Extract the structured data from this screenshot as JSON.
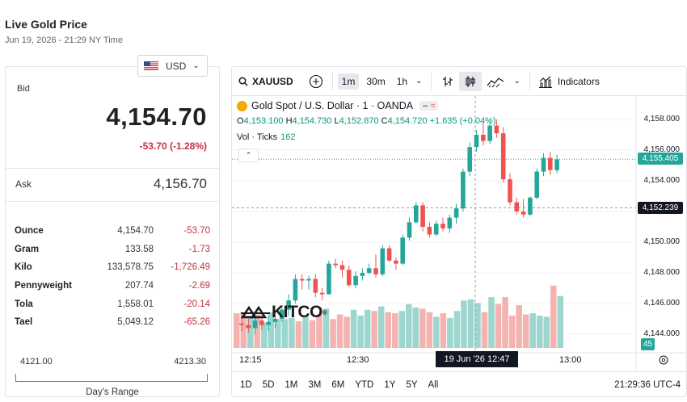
{
  "page": {
    "title": "Live Gold Price",
    "datetime": "Jun 19, 2026 - 21:29 NY Time"
  },
  "currency": {
    "selected": "USD"
  },
  "quote": {
    "bid_label": "Bid",
    "bid": "4,154.70",
    "bid_change": "-53.70 (-1.28%)",
    "ask_label": "Ask",
    "ask": "4,156.70"
  },
  "units": [
    {
      "name": "Ounce",
      "price": "4,154.70",
      "change": "-53.70"
    },
    {
      "name": "Gram",
      "price": "133.58",
      "change": "-1.73"
    },
    {
      "name": "Kilo",
      "price": "133,578.75",
      "change": "-1,726.49"
    },
    {
      "name": "Pennyweight",
      "price": "207.74",
      "change": "-2.69"
    },
    {
      "name": "Tola",
      "price": "1,558.01",
      "change": "-20.14"
    },
    {
      "name": "Tael",
      "price": "5,049.12",
      "change": "-65.26"
    }
  ],
  "day_range": {
    "low": "4121.00",
    "high": "4213.30",
    "label": "Day's Range"
  },
  "toolbar": {
    "symbol": "XAUUSD",
    "intervals": [
      "1m",
      "30m",
      "1h"
    ],
    "active_interval": "1m",
    "indicators_label": "Indicators"
  },
  "legend": {
    "title": "Gold Spot / U.S. Dollar · 1 · OANDA",
    "open_label": "O",
    "open": "4,153.100",
    "high_label": "H",
    "high": "4,154.730",
    "low_label": "L",
    "low": "4,152.870",
    "close_label": "C",
    "close": "4,154.720",
    "change": "+1.635 (+0.04%)",
    "vol_label": "Vol · Ticks",
    "vol_value": "162"
  },
  "watermark": "KITCO",
  "time_axis": {
    "labels": [
      "12:15",
      "12:30",
      "13:00"
    ],
    "cursor": "19 Jun '26   12:47"
  },
  "price_axis": {
    "ticks": [
      "4,158.000",
      "4,156.000",
      "4,154.000",
      "4,152.000",
      "4,150.000",
      "4,148.000",
      "4,146.000",
      "4,144.000"
    ],
    "last_price": "4,155.405",
    "cursor_price": "4,152.239",
    "volume_last": "45"
  },
  "ranges": [
    "1D",
    "5D",
    "1M",
    "3M",
    "6M",
    "YTD",
    "1Y",
    "5Y",
    "All"
  ],
  "clock": "21:29:36 UTC-4",
  "colors": {
    "up": "#26a69a",
    "down": "#ef5350",
    "up_vol": "#9dd6cf",
    "down_vol": "#f4b3b0",
    "accent": "#089981",
    "negative": "#c5323f"
  },
  "chart_data": {
    "type": "candlestick",
    "interval": "1m",
    "symbol": "XAUUSD",
    "ylim": [
      4143.5,
      4159.5
    ],
    "candles": [
      {
        "o": 4144.7,
        "h": 4145.2,
        "l": 4144.2,
        "c": 4144.6
      },
      {
        "o": 4144.6,
        "h": 4145.0,
        "l": 4144.1,
        "c": 4144.4
      },
      {
        "o": 4144.4,
        "h": 4145.3,
        "l": 4144.0,
        "c": 4144.9
      },
      {
        "o": 4144.9,
        "h": 4145.4,
        "l": 4144.3,
        "c": 4144.6
      },
      {
        "o": 4144.6,
        "h": 4145.2,
        "l": 4144.2,
        "c": 4144.8
      },
      {
        "o": 4144.8,
        "h": 4145.5,
        "l": 4144.4,
        "c": 4145.0
      },
      {
        "o": 4145.0,
        "h": 4145.8,
        "l": 4144.8,
        "c": 4145.6
      },
      {
        "o": 4145.6,
        "h": 4146.6,
        "l": 4145.2,
        "c": 4146.2
      },
      {
        "o": 4146.2,
        "h": 4147.9,
        "l": 4146.0,
        "c": 4147.6
      },
      {
        "o": 4147.6,
        "h": 4147.9,
        "l": 4146.9,
        "c": 4147.5
      },
      {
        "o": 4147.5,
        "h": 4147.8,
        "l": 4146.9,
        "c": 4147.6
      },
      {
        "o": 4147.6,
        "h": 4147.9,
        "l": 4146.4,
        "c": 4146.7
      },
      {
        "o": 4146.7,
        "h": 4147.0,
        "l": 4146.2,
        "c": 4146.6
      },
      {
        "o": 4146.6,
        "h": 4148.8,
        "l": 4146.6,
        "c": 4148.6
      },
      {
        "o": 4148.6,
        "h": 4148.9,
        "l": 4148.3,
        "c": 4148.5
      },
      {
        "o": 4148.5,
        "h": 4148.8,
        "l": 4147.7,
        "c": 4148.2
      },
      {
        "o": 4148.2,
        "h": 4148.5,
        "l": 4147.1,
        "c": 4147.2
      },
      {
        "o": 4147.2,
        "h": 4148.1,
        "l": 4147.0,
        "c": 4147.8
      },
      {
        "o": 4147.8,
        "h": 4148.3,
        "l": 4147.5,
        "c": 4148.0
      },
      {
        "o": 4148.0,
        "h": 4148.6,
        "l": 4147.9,
        "c": 4148.3
      },
      {
        "o": 4148.3,
        "h": 4149.2,
        "l": 4147.7,
        "c": 4147.9
      },
      {
        "o": 4147.9,
        "h": 4149.8,
        "l": 4147.8,
        "c": 4149.6
      },
      {
        "o": 4149.6,
        "h": 4149.8,
        "l": 4148.7,
        "c": 4148.8
      },
      {
        "o": 4148.8,
        "h": 4149.0,
        "l": 4148.2,
        "c": 4148.6
      },
      {
        "o": 4148.6,
        "h": 4150.5,
        "l": 4148.5,
        "c": 4150.3
      },
      {
        "o": 4150.3,
        "h": 4151.6,
        "l": 4150.1,
        "c": 4151.3
      },
      {
        "o": 4151.3,
        "h": 4152.6,
        "l": 4151.2,
        "c": 4152.4
      },
      {
        "o": 4152.4,
        "h": 4152.6,
        "l": 4150.7,
        "c": 4151.0
      },
      {
        "o": 4151.0,
        "h": 4151.3,
        "l": 4150.3,
        "c": 4150.5
      },
      {
        "o": 4150.5,
        "h": 4151.4,
        "l": 4150.4,
        "c": 4151.2
      },
      {
        "o": 4151.2,
        "h": 4151.6,
        "l": 4150.7,
        "c": 4150.9
      },
      {
        "o": 4150.9,
        "h": 4151.8,
        "l": 4150.6,
        "c": 4151.6
      },
      {
        "o": 4151.6,
        "h": 4152.5,
        "l": 4151.2,
        "c": 4152.2
      },
      {
        "o": 4152.2,
        "h": 4154.8,
        "l": 4152.0,
        "c": 4154.6
      },
      {
        "o": 4154.6,
        "h": 4156.5,
        "l": 4154.3,
        "c": 4156.2
      },
      {
        "o": 4156.2,
        "h": 4157.3,
        "l": 4155.9,
        "c": 4157.0
      },
      {
        "o": 4157.0,
        "h": 4157.8,
        "l": 4156.3,
        "c": 4156.6
      },
      {
        "o": 4156.6,
        "h": 4157.9,
        "l": 4156.4,
        "c": 4157.6
      },
      {
        "o": 4157.6,
        "h": 4158.0,
        "l": 4156.8,
        "c": 4157.1
      },
      {
        "o": 4157.1,
        "h": 4157.5,
        "l": 4153.9,
        "c": 4154.1
      },
      {
        "o": 4154.1,
        "h": 4154.5,
        "l": 4152.4,
        "c": 4152.6
      },
      {
        "o": 4152.6,
        "h": 4152.9,
        "l": 4151.8,
        "c": 4152.0
      },
      {
        "o": 4152.0,
        "h": 4152.8,
        "l": 4151.6,
        "c": 4151.8
      },
      {
        "o": 4151.8,
        "h": 4153.0,
        "l": 4151.7,
        "c": 4152.9
      },
      {
        "o": 4152.9,
        "h": 4154.8,
        "l": 4152.8,
        "c": 4154.6
      },
      {
        "o": 4154.6,
        "h": 4155.8,
        "l": 4154.3,
        "c": 4155.5
      },
      {
        "o": 4155.5,
        "h": 4155.9,
        "l": 4154.4,
        "c": 4154.7
      },
      {
        "o": 4154.7,
        "h": 4155.7,
        "l": 4154.5,
        "c": 4155.4
      }
    ],
    "volume": [
      30,
      31,
      28,
      29,
      22,
      31,
      25,
      25,
      26,
      23,
      28,
      24,
      29,
      34,
      25,
      29,
      27,
      33,
      28,
      33,
      32,
      36,
      31,
      30,
      32,
      38,
      35,
      34,
      31,
      27,
      30,
      26,
      32,
      41,
      42,
      39,
      31,
      44,
      38,
      44,
      28,
      37,
      29,
      30,
      28,
      27,
      54,
      45
    ]
  }
}
